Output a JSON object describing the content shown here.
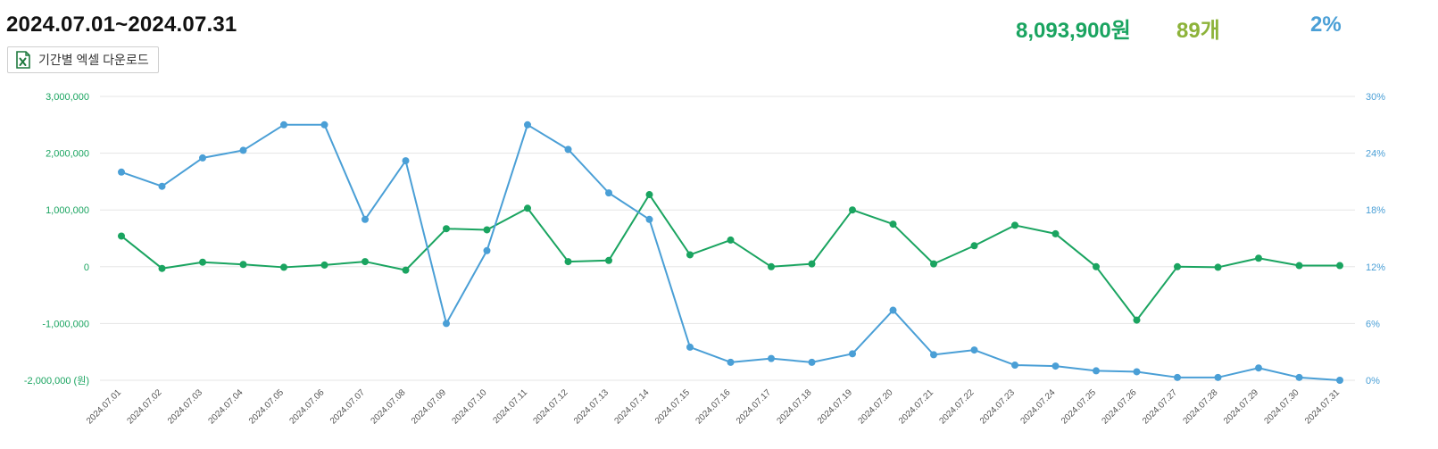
{
  "header": {
    "date_range": "2024.07.01~2024.07.31",
    "excel_button_label": "기간별 엑셀 다운로드"
  },
  "summary": {
    "sales": "8,093,900원",
    "count": "89개",
    "rate": "2%"
  },
  "colors": {
    "sales": "#1aa460",
    "count": "#8db33a",
    "rate": "#4a9fd6",
    "grid": "#e5e5e5",
    "excel_green": "#1f7a3f"
  },
  "icons": {
    "excel": "excel-file-icon"
  },
  "chart_data": {
    "type": "line",
    "categories": [
      "2024.07.01",
      "2024.07.02",
      "2024.07.03",
      "2024.07.04",
      "2024.07.05",
      "2024.07.06",
      "2024.07.07",
      "2024.07.08",
      "2024.07.09",
      "2024.07.10",
      "2024.07.11",
      "2024.07.12",
      "2024.07.13",
      "2024.07.14",
      "2024.07.15",
      "2024.07.16",
      "2024.07.17",
      "2024.07.18",
      "2024.07.19",
      "2024.07.20",
      "2024.07.21",
      "2024.07.22",
      "2024.07.23",
      "2024.07.24",
      "2024.07.25",
      "2024.07.26",
      "2024.07.27",
      "2024.07.28",
      "2024.07.29",
      "2024.07.30",
      "2024.07.31"
    ],
    "y_left": {
      "ticks": [
        -2000000,
        -1000000,
        0,
        1000000,
        2000000,
        3000000
      ],
      "tick_labels": [
        "-2,000,000 (원)",
        "-1,000,000",
        "0",
        "1,000,000",
        "2,000,000",
        "3,000,000"
      ],
      "range": [
        -2000000,
        3000000
      ]
    },
    "y_right": {
      "ticks": [
        0,
        6,
        12,
        18,
        24,
        30
      ],
      "tick_labels": [
        "0%",
        "6%",
        "12%",
        "18%",
        "24%",
        "30%"
      ],
      "range": [
        0,
        30
      ]
    },
    "series": [
      {
        "axis": "left",
        "color": "#1aa460",
        "values": [
          540000,
          -30000,
          80000,
          40000,
          -10000,
          30000,
          90000,
          -60000,
          670000,
          650000,
          1030000,
          90000,
          110000,
          1270000,
          210000,
          470000,
          0,
          50000,
          1000000,
          750000,
          50000,
          370000,
          730000,
          580000,
          0,
          -940000,
          0,
          -10000,
          150000,
          20000,
          20000
        ]
      },
      {
        "axis": "right",
        "color": "#4a9fd6",
        "values": [
          22,
          20.5,
          23.5,
          24.3,
          27,
          27,
          17,
          23.2,
          6,
          13.7,
          27,
          24.4,
          19.8,
          17,
          3.5,
          1.9,
          2.3,
          1.9,
          2.8,
          7.4,
          2.7,
          3.2,
          1.6,
          1.5,
          1.0,
          0.9,
          0.3,
          0.3,
          1.3,
          0.3,
          0
        ]
      }
    ],
    "grid": true
  }
}
